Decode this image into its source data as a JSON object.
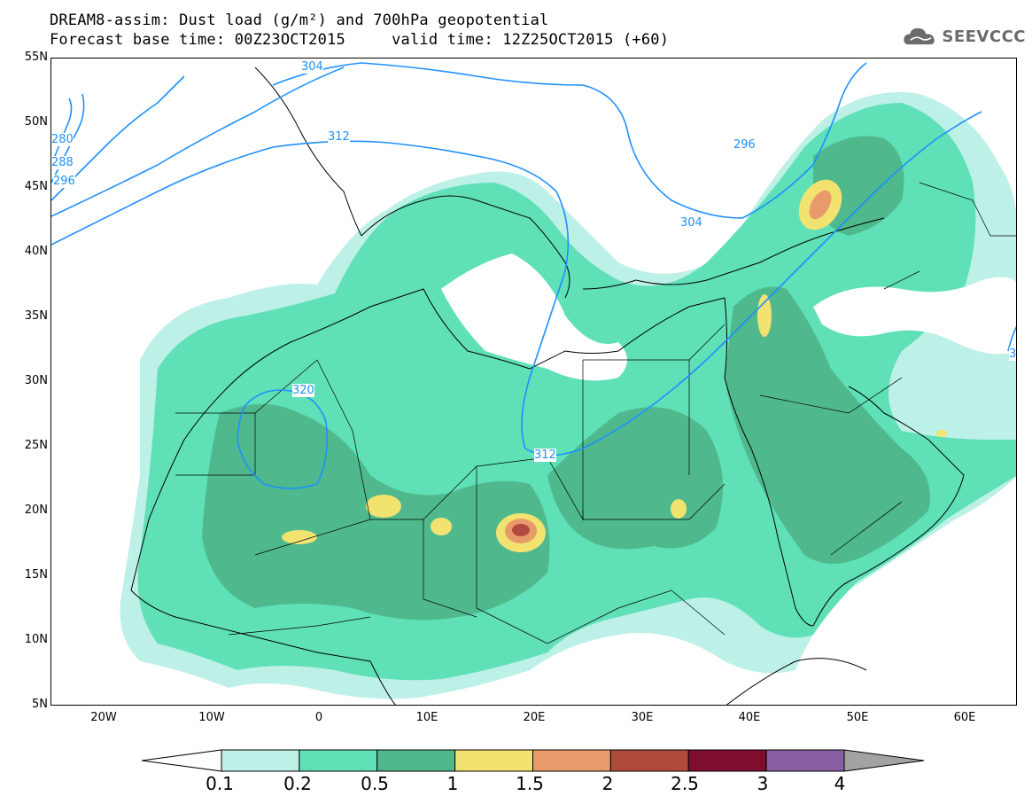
{
  "title": {
    "line1": "DREAM8-assim: Dust load (g/m²) and 700hPa geopotential",
    "line2": "Forecast base time: 00Z23OCT2015     valid time: 12Z25OCT2015 (+60)"
  },
  "logo": {
    "text": "SEEVCCC",
    "icon": "cloud-icon",
    "color": "#6b6b6b"
  },
  "axes": {
    "lat_labels": [
      "55N",
      "50N",
      "45N",
      "40N",
      "35N",
      "30N",
      "25N",
      "20N",
      "15N",
      "10N",
      "5N"
    ],
    "lon_labels": [
      "20W",
      "10W",
      "0",
      "10E",
      "20E",
      "30E",
      "40E",
      "50E",
      "60E"
    ]
  },
  "contours": {
    "labels": [
      "304",
      "312",
      "320",
      "296",
      "304",
      "312",
      "280",
      "288",
      "296",
      "3"
    ]
  },
  "colorbar": {
    "labels": [
      "0.1",
      "0.2",
      "0.5",
      "1",
      "1.5",
      "2",
      "2.5",
      "3",
      "4"
    ],
    "colors": [
      "#bdf0e6",
      "#5fe0b7",
      "#4fb98d",
      "#f2e371",
      "#e89a6b",
      "#b04a3c",
      "#7e0d2e",
      "#8a5ea5",
      "#a3a3a3"
    ]
  }
}
